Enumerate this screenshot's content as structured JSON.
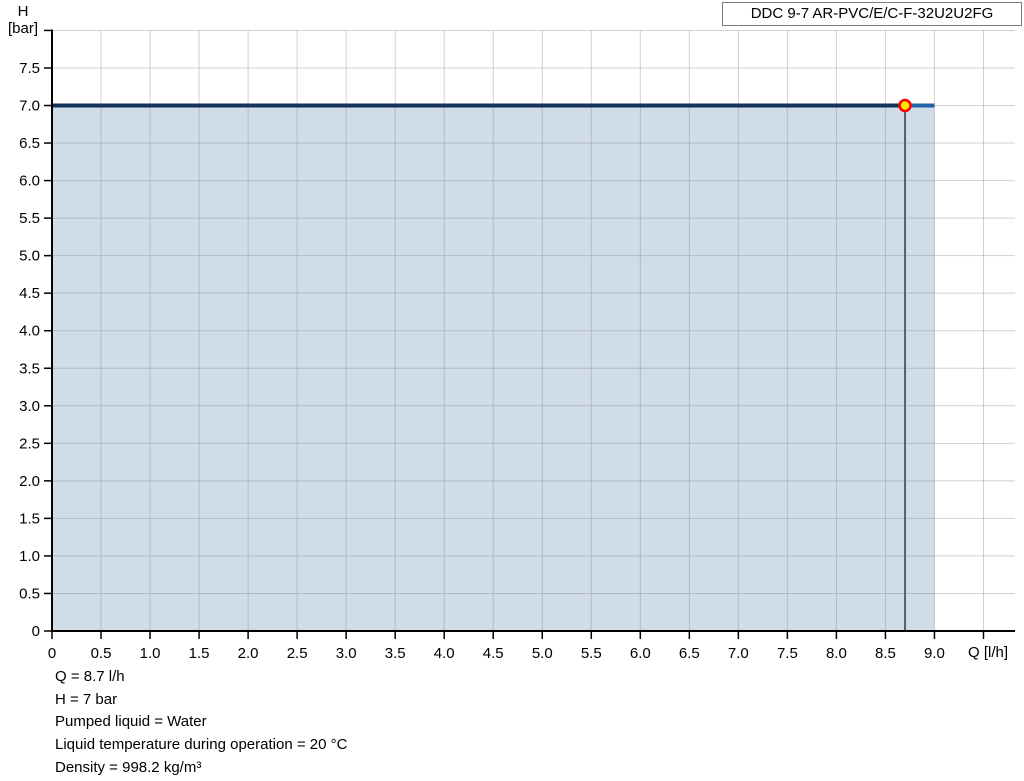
{
  "title_box": {
    "label": "DDC 9-7 AR-PVC/E/C-F-32U2U2FG"
  },
  "chart_data": {
    "type": "line",
    "title": "DDC 9-7 AR-PVC/E/C-F-32U2U2FG",
    "xlabel": "Q [l/h]",
    "ylabel": "H [bar]",
    "ylabel_lines": [
      "H",
      "[bar]"
    ],
    "xlim": [
      0,
      9.82
    ],
    "ylim": [
      0,
      8
    ],
    "x_tick_step": 0.5,
    "y_tick_step": 0.5,
    "x_tick_labels": [
      "0",
      "0.5",
      "1.0",
      "1.5",
      "2.0",
      "2.5",
      "3.0",
      "3.5",
      "4.0",
      "4.5",
      "5.0",
      "5.5",
      "6.0",
      "6.5",
      "7.0",
      "7.5",
      "8.0",
      "8.5",
      "9.0"
    ],
    "y_tick_labels": [
      "0",
      "0.5",
      "1.0",
      "1.5",
      "2.0",
      "2.5",
      "3.0",
      "3.5",
      "4.0",
      "4.5",
      "5.0",
      "5.5",
      "6.0",
      "6.5",
      "7.0",
      "7.5"
    ],
    "grid": true,
    "legend": false,
    "area_under_curve": true,
    "series": [
      {
        "name": "pump-curve",
        "x": [
          0,
          9.0
        ],
        "y": [
          7.0,
          7.0
        ]
      }
    ],
    "duty_point": {
      "Q_lh": 8.7,
      "H_bar": 7.0
    }
  },
  "footer": {
    "lines": [
      "Q = 8.7 l/h",
      "H = 7 bar",
      "Pumped liquid = Water",
      "Liquid temperature during operation = 20 °C",
      "Density = 998.2 kg/m³"
    ]
  },
  "colors": {
    "curve_dark": "#15335a",
    "curve_light": "#2063a6",
    "area_fill": "#d0dce6",
    "grid_line": "#82888e",
    "axis": "#000000",
    "duty_line": "#55606a",
    "marker_fill": "#ffe500",
    "marker_stroke": "#ff0000",
    "text": "#111111"
  }
}
